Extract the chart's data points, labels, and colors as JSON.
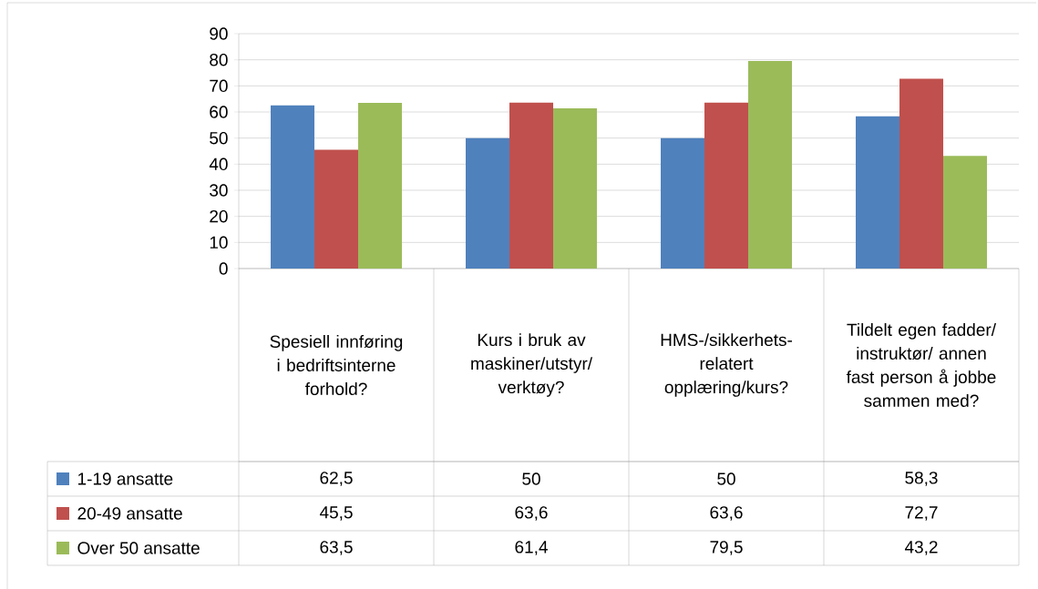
{
  "chart_data": {
    "type": "bar",
    "categories": [
      "Spesiell innføring i bedriftsinterne forhold?",
      "Kurs i bruk av maskiner/utstyr/ verktøy?",
      "HMS-/sikkerhets-relatert opplæring/kurs?",
      "Tildelt egen fadder/ instruktør/ annen fast person å jobbe sammen med?"
    ],
    "series": [
      {
        "name": "1-19 ansatte",
        "color": "#4f81bd",
        "values": [
          62.5,
          50,
          50,
          58.3
        ],
        "value_labels": [
          "62,5",
          "50",
          "50",
          "58,3"
        ]
      },
      {
        "name": "20-49 ansatte",
        "color": "#c0504d",
        "values": [
          45.5,
          63.6,
          63.6,
          72.7
        ],
        "value_labels": [
          "45,5",
          "63,6",
          "63,6",
          "72,7"
        ]
      },
      {
        "name": "Over 50 ansatte",
        "color": "#9bbb59",
        "values": [
          63.5,
          61.4,
          79.5,
          43.2
        ],
        "value_labels": [
          "63,5",
          "61,4",
          "79,5",
          "43,2"
        ]
      }
    ],
    "ylim": [
      0,
      90
    ],
    "yticks": [
      0,
      10,
      20,
      30,
      40,
      50,
      60,
      70,
      80,
      90
    ],
    "grid": "y",
    "legend": "bottom left"
  }
}
